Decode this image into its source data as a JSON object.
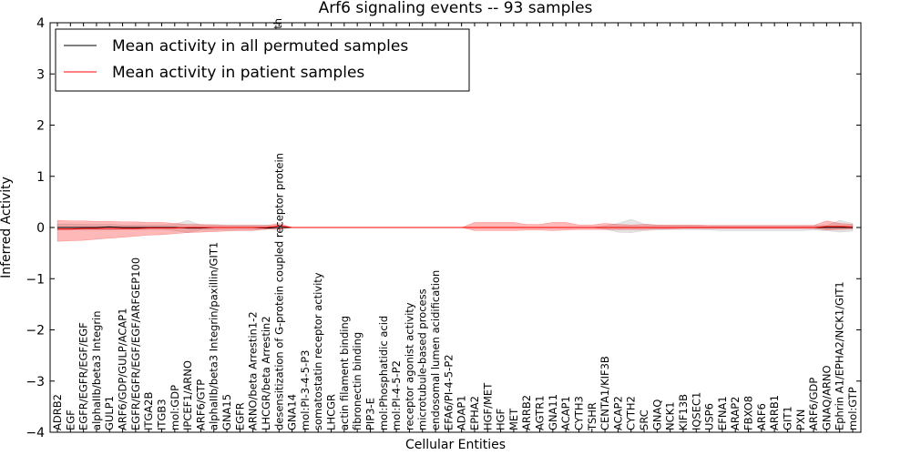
{
  "chart_data": {
    "type": "line",
    "title": "Arf6 signaling events -- 93 samples",
    "xlabel": "Cellular Entities",
    "ylabel": "Inferred Activity",
    "ylim": [
      -4,
      4
    ],
    "yticks": [
      4,
      3,
      2,
      1,
      0,
      -1,
      -2,
      -3,
      -4
    ],
    "ytick_labels": [
      "4",
      "3",
      "2",
      "1",
      "0",
      "−1",
      "−2",
      "−3",
      "−4"
    ],
    "categories": [
      "ADRB2",
      "EGF",
      "EGFR/EGFR/EGF/EGF",
      "alphaIIb/beta3 Integrin",
      "GULP1",
      "ARF6/GDP/GULP/ACAP1",
      "EGFR/EGFR/EGF/EGF/ARFGEP100",
      "ITGA2B",
      "ITGB3",
      "mol:GDP",
      "IPCEF1/ARNO",
      "ARF6/GTP",
      "alphaIIb/beta3 Integrin/paxillin/GIT1",
      "GNA15",
      "EGFR",
      "ARNO/beta Arrestin1-2",
      "LHCGR/beta Arrestin2",
      "desensitization of G-protein coupled receptor protein",
      "GNA14",
      "mol:PI-3-4-5-P3",
      "somatostatin receptor activity",
      "LHCGR",
      "actin filament binding",
      "fibronectin binding",
      "PIP3-E",
      "mol:Phosphatidic acid",
      "mol:PI-4-5-P2",
      "receptor agonist activity",
      "microtubule-based process",
      "endosomal lumen acidification",
      "EFA6/PI-4-5-P2",
      "ADAP1",
      "EPHA2",
      "HGF/MET",
      "HGF",
      "MET",
      "ARRB2",
      "AGTR1",
      "GNA11",
      "ACAP1",
      "CYTH3",
      "TSHR",
      "CENTA1/KIF3B",
      "ACAP2",
      "CYTH2",
      "SRC",
      "GNAQ",
      "NCK1",
      "KIF13B",
      "IQSEC1",
      "USP6",
      "EFNA1",
      "ARAP2",
      "FBXO8",
      "ARF6",
      "ARRB1",
      "GIT1",
      "PXN",
      "ARF6/GDP",
      "GNAQ/ARNO",
      "Ephrin A1/EPHA2/NCK1/GIT1",
      "mol:GTP"
    ],
    "cutoff_label": "path",
    "series": [
      {
        "name": "Mean activity in all permuted samples",
        "color": "#000000",
        "values": [
          0.0,
          0.0,
          0.0,
          0.0,
          0.01,
          0.0,
          0.0,
          0.0,
          0.0,
          0.0,
          -0.01,
          -0.01,
          0.0,
          0.0,
          0.0,
          0.0,
          -0.01,
          0.0,
          0.0,
          0.0,
          0.0,
          0.0,
          0.0,
          0.0,
          0.0,
          0.0,
          0.0,
          0.0,
          0.0,
          0.0,
          0.0,
          0.0,
          0.0,
          0.0,
          0.0,
          0.0,
          0.0,
          0.0,
          0.0,
          0.0,
          0.0,
          0.0,
          0.0,
          0.0,
          0.0,
          0.0,
          0.0,
          0.0,
          0.0,
          0.0,
          0.0,
          0.0,
          0.0,
          0.0,
          0.0,
          0.0,
          0.0,
          0.0,
          0.0,
          0.0,
          0.0,
          0.0
        ],
        "band_upper": [
          0.07,
          0.07,
          0.06,
          0.06,
          0.06,
          0.05,
          0.05,
          0.05,
          0.05,
          0.06,
          0.14,
          0.05,
          0.06,
          0.05,
          0.05,
          0.05,
          0.05,
          0.0,
          0.0,
          0.0,
          0.0,
          0.0,
          0.0,
          0.0,
          0.0,
          0.0,
          0.0,
          0.0,
          0.0,
          0.0,
          0.0,
          0.0,
          0.0,
          0.0,
          0.0,
          0.0,
          0.0,
          0.0,
          0.0,
          0.0,
          0.0,
          0.0,
          0.03,
          0.08,
          0.16,
          0.07,
          0.05,
          0.04,
          0.04,
          0.04,
          0.04,
          0.04,
          0.04,
          0.04,
          0.04,
          0.04,
          0.04,
          0.04,
          0.04,
          0.04,
          0.14,
          0.08
        ],
        "band_lower": [
          -0.05,
          -0.05,
          -0.05,
          -0.05,
          -0.05,
          -0.04,
          -0.04,
          -0.04,
          -0.04,
          -0.06,
          -0.1,
          -0.05,
          -0.05,
          -0.04,
          -0.04,
          -0.04,
          -0.04,
          0.0,
          0.0,
          0.0,
          0.0,
          0.0,
          0.0,
          0.0,
          0.0,
          0.0,
          0.0,
          0.0,
          0.0,
          0.0,
          0.0,
          0.0,
          0.0,
          0.0,
          0.0,
          0.0,
          0.0,
          0.0,
          0.0,
          0.0,
          0.0,
          0.0,
          -0.03,
          -0.09,
          -0.1,
          -0.06,
          -0.05,
          -0.04,
          -0.04,
          -0.04,
          -0.05,
          -0.06,
          -0.06,
          -0.06,
          -0.06,
          -0.06,
          -0.06,
          -0.06,
          -0.05,
          -0.06,
          -0.09,
          -0.07
        ]
      },
      {
        "name": "Mean activity in patient samples",
        "color": "#ff0000",
        "values": [
          -0.03,
          -0.03,
          -0.02,
          -0.02,
          -0.02,
          -0.02,
          -0.02,
          -0.01,
          -0.01,
          -0.01,
          0.0,
          0.0,
          0.0,
          0.0,
          0.0,
          0.0,
          0.0,
          0.03,
          0.0,
          0.0,
          0.0,
          0.0,
          0.0,
          0.0,
          0.0,
          0.0,
          0.0,
          0.0,
          0.0,
          0.0,
          0.0,
          0.0,
          0.0,
          0.0,
          0.0,
          0.0,
          0.0,
          0.0,
          0.0,
          0.0,
          0.0,
          0.0,
          0.0,
          0.0,
          0.0,
          0.0,
          0.0,
          0.0,
          0.0,
          0.0,
          0.0,
          0.0,
          0.0,
          0.0,
          0.0,
          0.0,
          0.0,
          0.0,
          0.0,
          0.02,
          0.02,
          0.01
        ],
        "band_upper": [
          0.14,
          0.13,
          0.13,
          0.12,
          0.12,
          0.11,
          0.11,
          0.1,
          0.1,
          0.08,
          0.06,
          0.06,
          0.05,
          0.04,
          0.04,
          0.04,
          0.04,
          0.08,
          0.0,
          0.0,
          0.0,
          0.0,
          0.0,
          0.0,
          0.0,
          0.0,
          0.0,
          0.0,
          0.0,
          0.0,
          0.0,
          0.0,
          0.1,
          0.1,
          0.1,
          0.1,
          0.06,
          0.06,
          0.1,
          0.1,
          0.05,
          0.05,
          0.08,
          0.06,
          0.05,
          0.06,
          0.05,
          0.05,
          0.05,
          0.05,
          0.04,
          0.04,
          0.04,
          0.04,
          0.04,
          0.04,
          0.04,
          0.04,
          0.04,
          0.13,
          0.08,
          0.06
        ],
        "band_lower": [
          -0.27,
          -0.26,
          -0.25,
          -0.23,
          -0.21,
          -0.19,
          -0.17,
          -0.15,
          -0.14,
          -0.12,
          -0.1,
          -0.09,
          -0.08,
          -0.07,
          -0.06,
          -0.06,
          -0.03,
          -0.04,
          0.0,
          0.0,
          0.0,
          0.0,
          0.0,
          0.0,
          0.0,
          0.0,
          0.0,
          0.0,
          0.0,
          0.0,
          0.0,
          0.0,
          -0.06,
          -0.06,
          -0.06,
          -0.06,
          -0.05,
          -0.05,
          -0.06,
          -0.05,
          -0.04,
          -0.04,
          -0.04,
          -0.04,
          -0.04,
          -0.04,
          -0.03,
          -0.03,
          -0.02,
          -0.02,
          -0.02,
          -0.02,
          -0.02,
          -0.02,
          -0.02,
          -0.02,
          -0.02,
          -0.02,
          -0.02,
          -0.05,
          -0.04,
          -0.03
        ]
      }
    ],
    "legend": {
      "position": "top-left",
      "entries": [
        "Mean activity in all permuted samples",
        "Mean activity in patient samples"
      ]
    }
  }
}
